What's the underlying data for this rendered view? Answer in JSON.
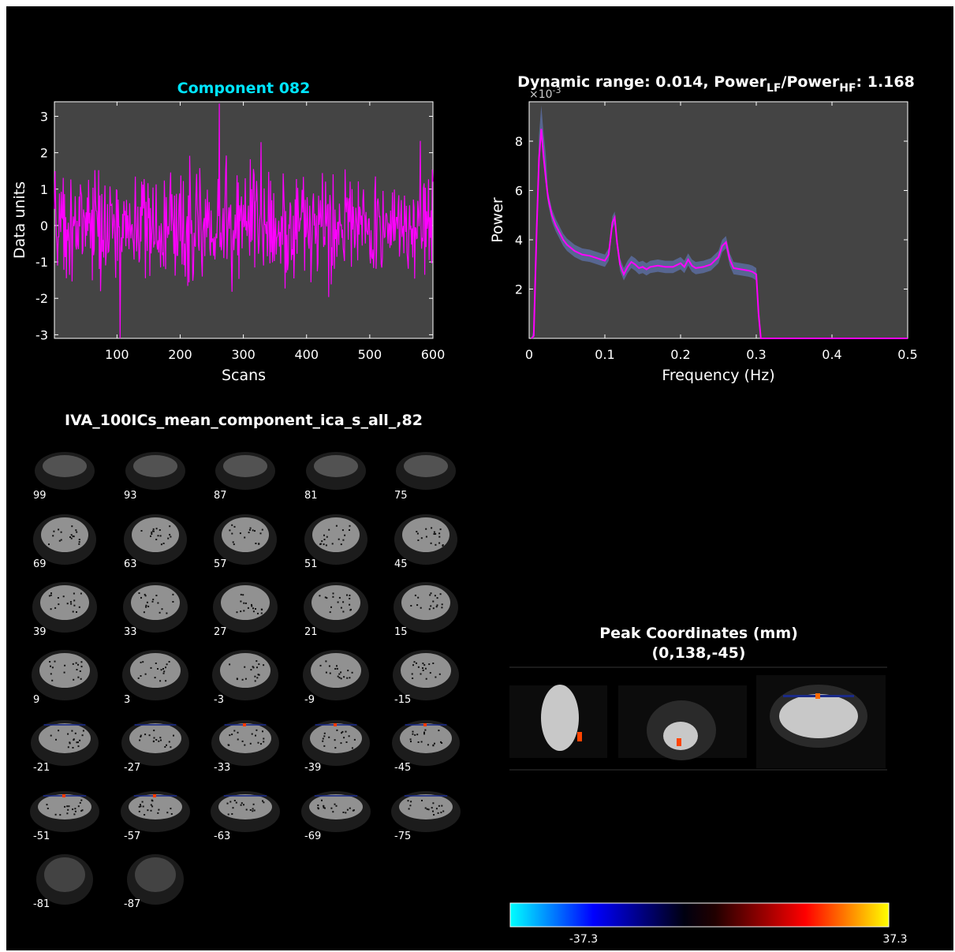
{
  "chart_data": [
    {
      "type": "line",
      "title": "Component 082",
      "title_color": "#00e5ff",
      "xlabel": "Scans",
      "ylabel": "Data units",
      "xlim": [
        1,
        600
      ],
      "ylim": [
        -3.1,
        3.4
      ],
      "xticks": [
        100,
        200,
        300,
        400,
        500,
        600
      ],
      "yticks": [
        -3,
        -2,
        -1,
        0,
        1,
        2,
        3
      ],
      "series": [
        {
          "color": "#ff00ff",
          "n_points": 600,
          "peak": [
            262,
            3.35
          ],
          "trough": [
            105,
            -3.1
          ]
        }
      ],
      "grid": false,
      "plot_bg": "#444444"
    },
    {
      "type": "line",
      "title_parts": [
        "Dynamic range: 0.014, Power",
        "LF",
        "/Power",
        "HF",
        ": 1.168"
      ],
      "xlabel": "Frequency (Hz)",
      "ylabel": "Power",
      "exponent_label": "×10",
      "exponent_power": "-3",
      "xlim": [
        0,
        0.5
      ],
      "ylim": [
        0,
        9.6
      ],
      "xticks": [
        0,
        0.1,
        0.2,
        0.3,
        0.4,
        0.5
      ],
      "xtick_labels": [
        "0",
        "0.1",
        "0.2",
        "0.3",
        "0.4",
        "0.5"
      ],
      "yticks": [
        2,
        4,
        6,
        8
      ],
      "series": [
        {
          "color": "#ff00ff",
          "band_color": "#5a6a9a",
          "x": [
            0.003,
            0.006,
            0.01,
            0.013,
            0.016,
            0.019,
            0.022,
            0.025,
            0.03,
            0.035,
            0.04,
            0.045,
            0.05,
            0.06,
            0.07,
            0.08,
            0.09,
            0.1,
            0.105,
            0.11,
            0.113,
            0.116,
            0.12,
            0.125,
            0.13,
            0.135,
            0.14,
            0.145,
            0.15,
            0.155,
            0.16,
            0.17,
            0.18,
            0.19,
            0.2,
            0.205,
            0.21,
            0.215,
            0.22,
            0.23,
            0.24,
            0.25,
            0.255,
            0.26,
            0.265,
            0.27,
            0.28,
            0.29,
            0.295,
            0.3,
            0.303,
            0.306,
            0.32,
            0.4,
            0.5
          ],
          "values": [
            0.0,
            0.1,
            4.5,
            7.3,
            8.5,
            7.4,
            6.5,
            5.7,
            5.0,
            4.6,
            4.3,
            4.0,
            3.8,
            3.55,
            3.4,
            3.35,
            3.25,
            3.15,
            3.4,
            4.7,
            4.9,
            3.9,
            3.0,
            2.6,
            2.9,
            3.1,
            3.0,
            2.85,
            2.9,
            2.8,
            2.9,
            2.95,
            2.9,
            2.9,
            3.05,
            2.9,
            3.2,
            2.95,
            2.85,
            2.9,
            3.0,
            3.3,
            3.75,
            3.9,
            3.2,
            2.85,
            2.8,
            2.75,
            2.7,
            2.6,
            1.0,
            0.0,
            0.0,
            0.0,
            0.0
          ]
        }
      ],
      "grid": false,
      "plot_bg": "#444444"
    },
    {
      "type": "heatmap",
      "title": "IVA_100ICs_mean_component_ica_s_all_,82",
      "slice_labels": [
        "99",
        "93",
        "87",
        "81",
        "75",
        "69",
        "63",
        "57",
        "51",
        "45",
        "39",
        "33",
        "27",
        "21",
        "15",
        "9",
        "3",
        "-3",
        "-9",
        "-15",
        "-21",
        "-27",
        "-33",
        "-39",
        "-45",
        "-51",
        "-57",
        "-63",
        "-69",
        "-75",
        "-81",
        "-87"
      ],
      "peak_title": "Peak Coordinates (mm)",
      "peak_coords": "(0,138,-45)",
      "colorbar_labels": [
        "-37.3",
        "37.3"
      ],
      "colorbar_range": [
        -37.3,
        37.3
      ]
    }
  ]
}
